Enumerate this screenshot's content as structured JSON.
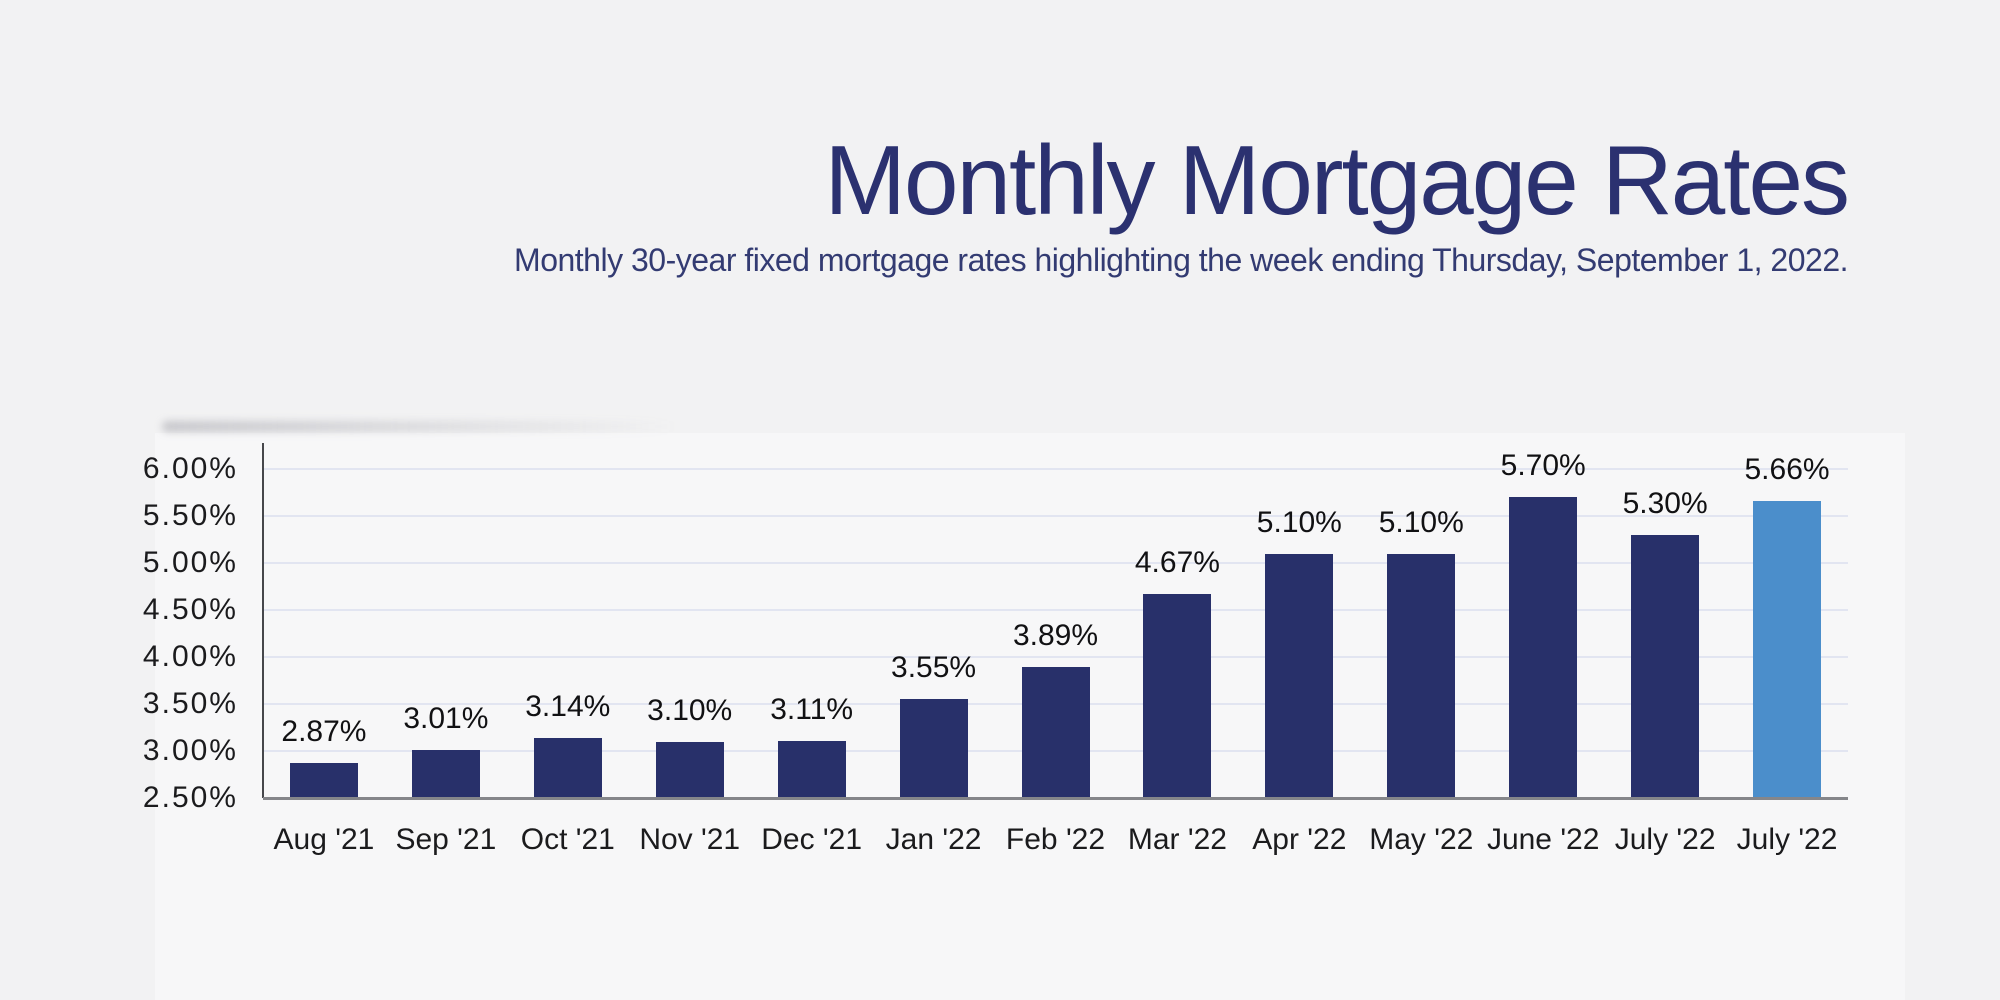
{
  "page": {
    "background_color": "#f2f2f3",
    "panel_color": "rgba(255,255,255,0.42)"
  },
  "chart_data": {
    "type": "bar",
    "title": "Monthly Mortgage Rates",
    "subtitle": "Monthly 30-year fixed mortgage rates highlighting the week ending Thursday, September 1, 2022.",
    "categories": [
      "Aug '21",
      "Sep '21",
      "Oct '21",
      "Nov '21",
      "Dec '21",
      "Jan '22",
      "Feb '22",
      "Mar '22",
      "Apr '22",
      "May '22",
      "June '22",
      "July '22",
      "July '22"
    ],
    "values": [
      2.87,
      3.01,
      3.14,
      3.1,
      3.11,
      3.55,
      3.89,
      4.67,
      5.1,
      5.1,
      5.7,
      5.3,
      5.66
    ],
    "value_labels": [
      "2.87%",
      "3.01%",
      "3.14%",
      "3.10%",
      "3.11%",
      "3.55%",
      "3.89%",
      "4.67%",
      "5.10%",
      "5.10%",
      "5.70%",
      "5.30%",
      "5.66%"
    ],
    "highlighted_category_index": 12,
    "y_tick_labels": [
      "6.00%",
      "5.50%",
      "5.00%",
      "4.50%",
      "4.00%",
      "3.50%",
      "3.00%",
      "2.50%"
    ],
    "y_tick_values": [
      6.0,
      5.5,
      5.0,
      4.5,
      4.0,
      3.5,
      3.0,
      2.5
    ],
    "ylim": [
      2.5,
      6.0
    ],
    "grid": true,
    "legend": false,
    "xlabel": "",
    "ylabel": "",
    "colors": {
      "bar": "#28306a",
      "highlight_bar": "#4b8ecb",
      "gridline": "#e2e5f1",
      "y_axis_line": "#46474b",
      "x_axis_line": "#85868a",
      "title": "#2b3170",
      "subtitle": "#333b72",
      "tick_label": "#1b1b1d",
      "value_label": "#111113"
    }
  }
}
